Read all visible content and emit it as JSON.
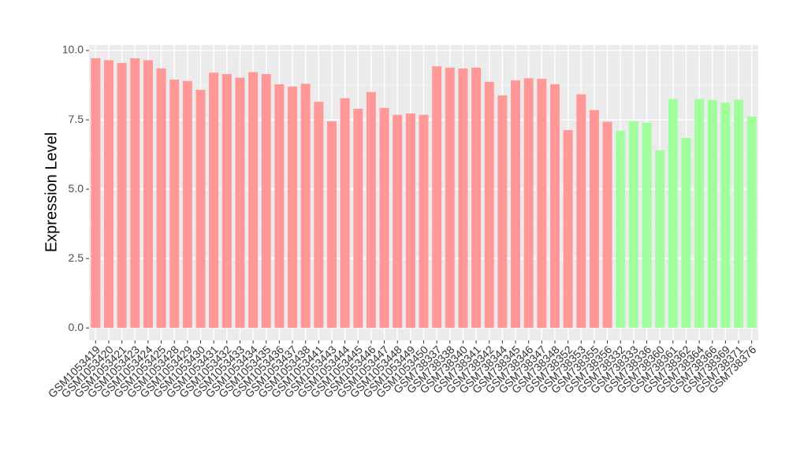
{
  "chart_data": {
    "type": "bar",
    "ylabel": "Expression Level",
    "categories": [
      "GSM1053419",
      "GSM1053420",
      "GSM1053421",
      "GSM1053423",
      "GSM1053424",
      "GSM1053425",
      "GSM1053428",
      "GSM1053429",
      "GSM1053430",
      "GSM1053431",
      "GSM1053432",
      "GSM1053433",
      "GSM1053434",
      "GSM1053435",
      "GSM1053436",
      "GSM1053437",
      "GSM1053438",
      "GSM1053441",
      "GSM1053443",
      "GSM1053444",
      "GSM1053445",
      "GSM1053446",
      "GSM1053447",
      "GSM1053448",
      "GSM1053449",
      "GSM1053450",
      "GSM738337",
      "GSM738338",
      "GSM738340",
      "GSM738341",
      "GSM738342",
      "GSM738344",
      "GSM738345",
      "GSM738346",
      "GSM738347",
      "GSM738348",
      "GSM738352",
      "GSM738353",
      "GSM738355",
      "GSM738356",
      "GSM738332",
      "GSM738333",
      "GSM738336",
      "GSM738360",
      "GSM738361",
      "GSM738362",
      "GSM738364",
      "GSM738366",
      "GSM738369",
      "GSM738371",
      "GSM738376"
    ],
    "values": [
      9.72,
      9.65,
      9.55,
      9.72,
      9.65,
      9.35,
      8.95,
      8.9,
      8.58,
      9.2,
      9.15,
      9.02,
      9.22,
      9.15,
      8.78,
      8.7,
      8.8,
      8.15,
      7.45,
      8.28,
      7.9,
      8.5,
      7.93,
      7.68,
      7.73,
      7.68,
      9.43,
      9.38,
      9.35,
      9.38,
      8.87,
      8.38,
      8.92,
      9.0,
      8.98,
      8.78,
      7.13,
      8.42,
      7.85,
      7.43,
      7.1,
      7.45,
      7.4,
      6.4,
      8.25,
      6.85,
      8.25,
      8.22,
      8.12,
      8.22,
      7.62
    ],
    "colors": [
      "#ff9896",
      "#ff9896",
      "#ff9896",
      "#ff9896",
      "#ff9896",
      "#ff9896",
      "#ff9896",
      "#ff9896",
      "#ff9896",
      "#ff9896",
      "#ff9896",
      "#ff9896",
      "#ff9896",
      "#ff9896",
      "#ff9896",
      "#ff9896",
      "#ff9896",
      "#ff9896",
      "#ff9896",
      "#ff9896",
      "#ff9896",
      "#ff9896",
      "#ff9896",
      "#ff9896",
      "#ff9896",
      "#ff9896",
      "#ff9896",
      "#ff9896",
      "#ff9896",
      "#ff9896",
      "#ff9896",
      "#ff9896",
      "#ff9896",
      "#ff9896",
      "#ff9896",
      "#ff9896",
      "#ff9896",
      "#ff9896",
      "#ff9896",
      "#ff9896",
      "#a0ff9c",
      "#a0ff9c",
      "#a0ff9c",
      "#a0ff9c",
      "#a0ff9c",
      "#a0ff9c",
      "#a0ff9c",
      "#a0ff9c",
      "#a0ff9c",
      "#a0ff9c",
      "#a0ff9c"
    ],
    "ylim": [
      -0.45,
      10.2
    ],
    "yticks": [
      {
        "value": 0,
        "label": "0.0"
      },
      {
        "value": 2.5,
        "label": "2.5"
      },
      {
        "value": 5,
        "label": "5.0"
      },
      {
        "value": 7.5,
        "label": "7.5"
      },
      {
        "value": 10,
        "label": "10.0"
      }
    ],
    "grid": true
  }
}
